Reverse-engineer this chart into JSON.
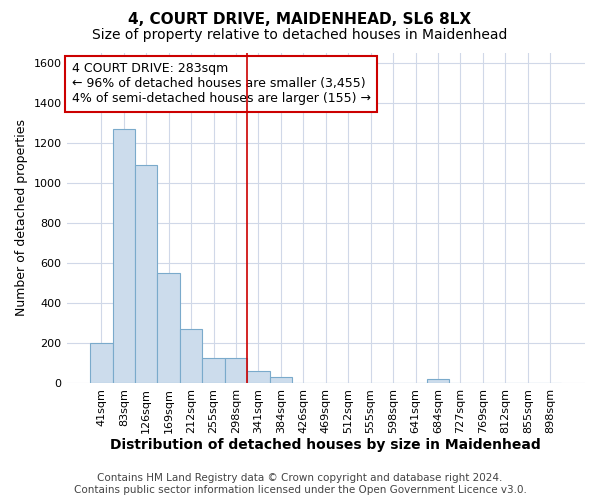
{
  "title1": "4, COURT DRIVE, MAIDENHEAD, SL6 8LX",
  "title2": "Size of property relative to detached houses in Maidenhead",
  "xlabel": "Distribution of detached houses by size in Maidenhead",
  "ylabel": "Number of detached properties",
  "categories": [
    "41sqm",
    "83sqm",
    "126sqm",
    "169sqm",
    "212sqm",
    "255sqm",
    "298sqm",
    "341sqm",
    "384sqm",
    "426sqm",
    "469sqm",
    "512sqm",
    "555sqm",
    "598sqm",
    "641sqm",
    "684sqm",
    "727sqm",
    "769sqm",
    "812sqm",
    "855sqm",
    "898sqm"
  ],
  "values": [
    200,
    1270,
    1090,
    550,
    270,
    125,
    125,
    60,
    30,
    0,
    0,
    0,
    0,
    0,
    0,
    20,
    0,
    0,
    0,
    0,
    0
  ],
  "bar_color": "#ccdcec",
  "bar_edge_color": "#7aaacb",
  "vline_x_index": 6,
  "vline_color": "#cc0000",
  "annotation_line1": "4 COURT DRIVE: 283sqm",
  "annotation_line2": "← 96% of detached houses are smaller (3,455)",
  "annotation_line3": "4% of semi-detached houses are larger (155) →",
  "annotation_box_color": "white",
  "annotation_box_edge_color": "#cc0000",
  "ylim": [
    0,
    1650
  ],
  "yticks": [
    0,
    200,
    400,
    600,
    800,
    1000,
    1200,
    1400,
    1600
  ],
  "footer1": "Contains HM Land Registry data © Crown copyright and database right 2024.",
  "footer2": "Contains public sector information licensed under the Open Government Licence v3.0.",
  "bg_color": "#ffffff",
  "plot_bg_color": "#ffffff",
  "grid_color": "#d0d8e8",
  "title1_fontsize": 11,
  "title1_fontweight": "bold",
  "title2_fontsize": 10,
  "xlabel_fontsize": 10,
  "ylabel_fontsize": 9,
  "tick_fontsize": 8,
  "annotation_fontsize": 9,
  "footer_fontsize": 7.5
}
